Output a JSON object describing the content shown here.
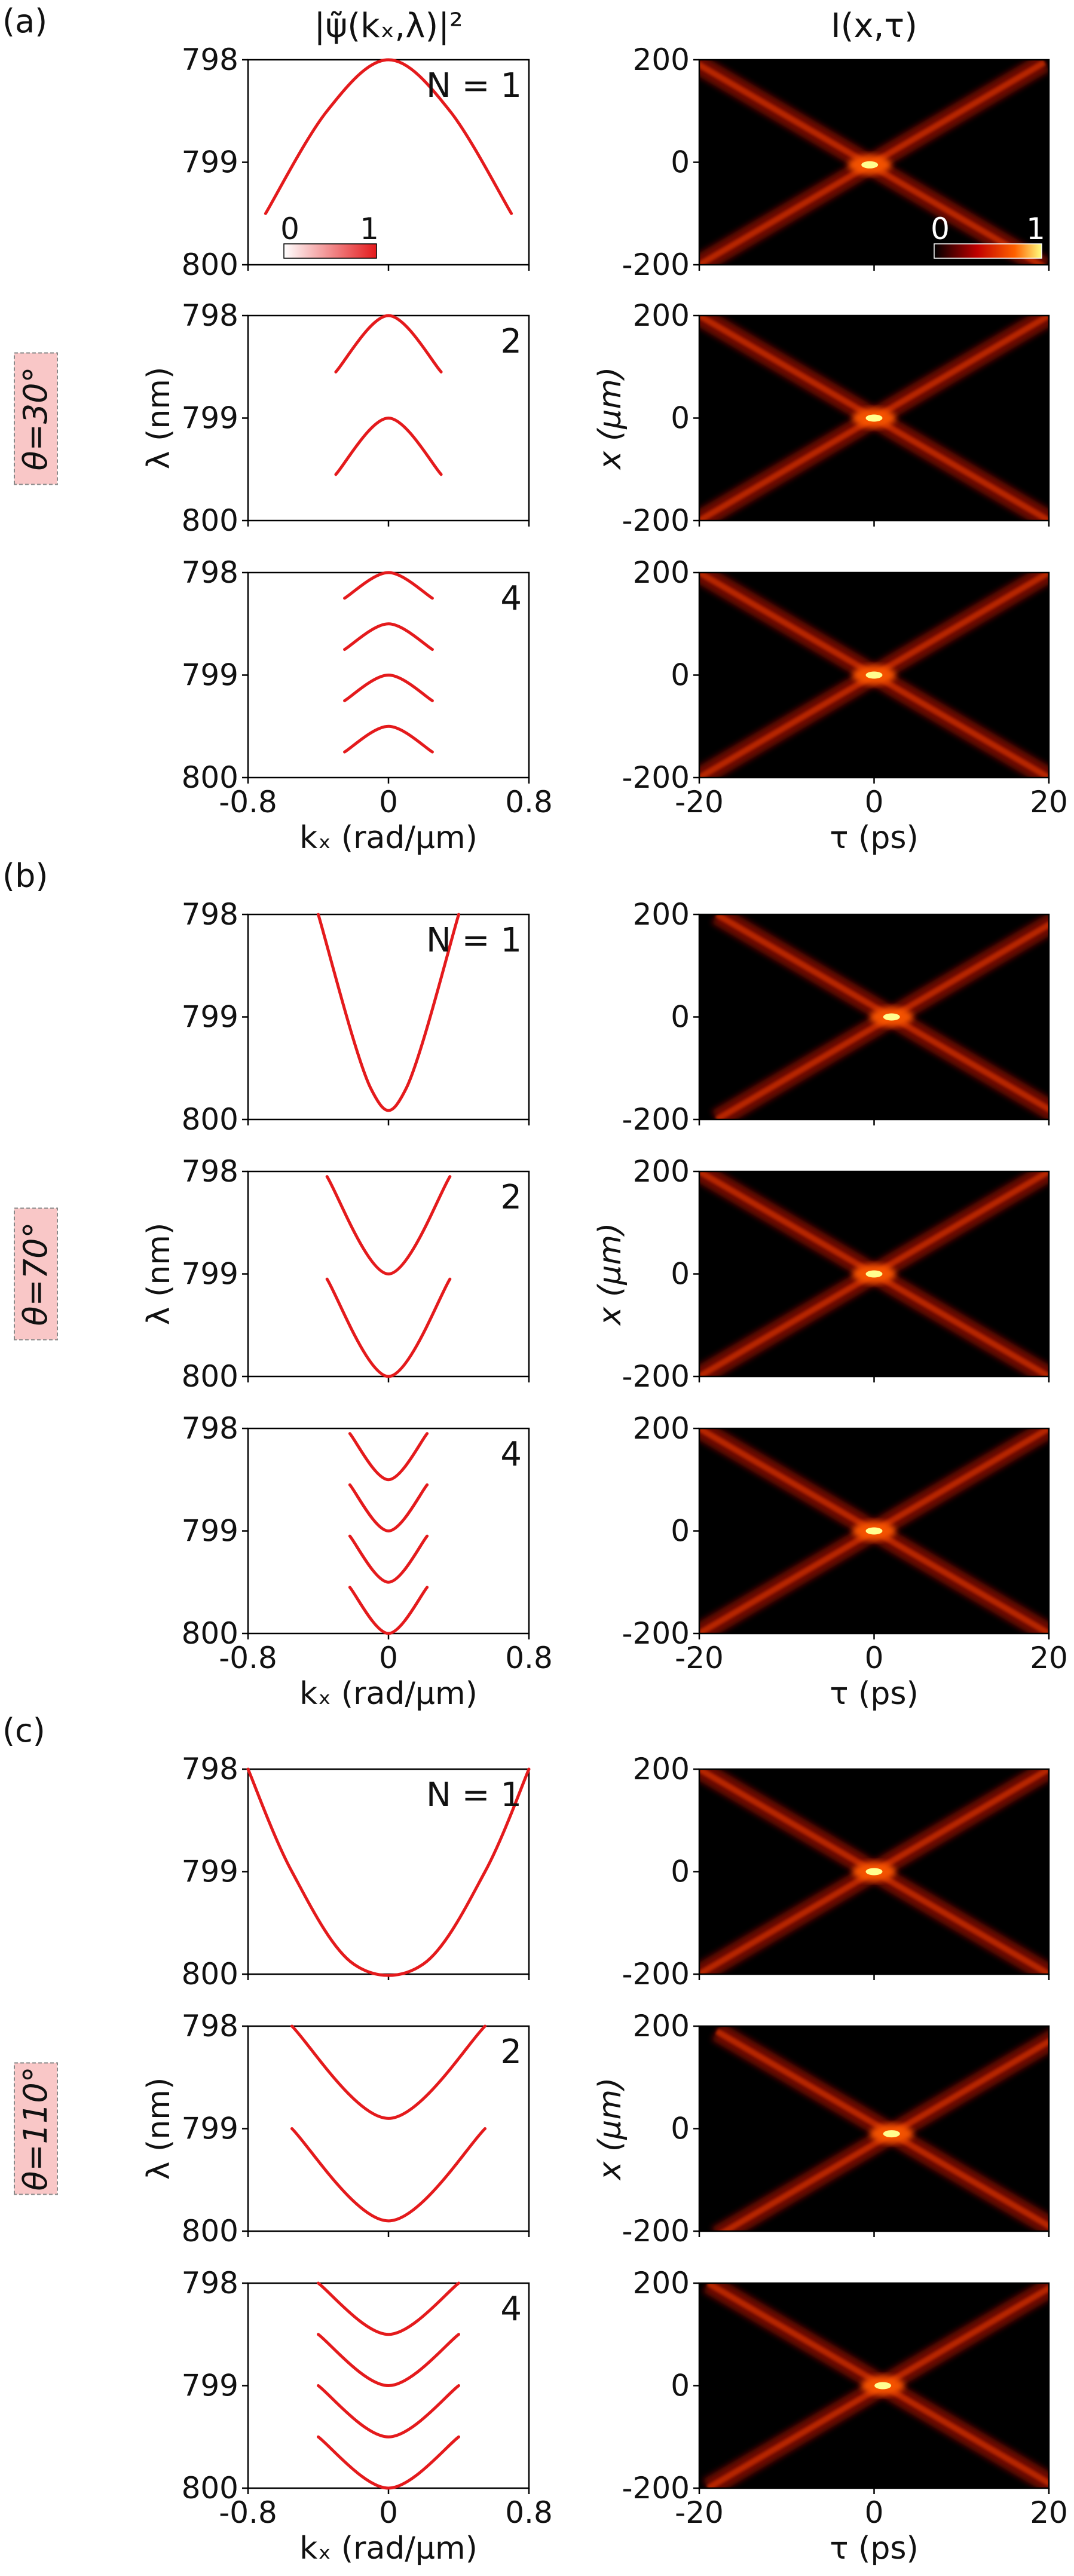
{
  "figure": {
    "left_column_title": "|ψ̃(kₓ,λ)|²",
    "right_column_title": "I(x,τ)",
    "colorbar_left": {
      "min": "0",
      "max": "1",
      "colors": [
        "#ffffff",
        "#e41a1c"
      ]
    },
    "colorbar_right": {
      "min": "0",
      "max": "1",
      "colors": [
        "#000000",
        "#c00000",
        "#ff6000",
        "#ffff80"
      ]
    },
    "spectrum_axes": {
      "xlabel": "kₓ (rad/μm)",
      "ylabel": "λ (nm)",
      "xticks": [
        "-0.8",
        "0",
        "0.8"
      ],
      "yticks": [
        "798",
        "799",
        "800"
      ]
    },
    "intensity_axes": {
      "xlabel": "τ (ps)",
      "ylabel": "x (μm)",
      "xticks": [
        "-20",
        "0",
        "20"
      ],
      "yticks": [
        "200",
        "0",
        "-200"
      ]
    },
    "groups": [
      {
        "label": "(a)",
        "theta": "θ=30°",
        "rows": [
          {
            "n_label": "N = 1"
          },
          {
            "n_label": "2"
          },
          {
            "n_label": "4"
          }
        ]
      },
      {
        "label": "(b)",
        "theta": "θ=70°",
        "rows": [
          {
            "n_label": "N = 1"
          },
          {
            "n_label": "2"
          },
          {
            "n_label": "4"
          }
        ]
      },
      {
        "label": "(c)",
        "theta": "θ=110°",
        "rows": [
          {
            "n_label": "N = 1"
          },
          {
            "n_label": "2"
          },
          {
            "n_label": "4"
          }
        ]
      }
    ]
  },
  "chart_data": [
    {
      "type": "line",
      "panel": "(a) N=1 spectrum",
      "title": "|ψ̃(kₓ,λ)|²",
      "xlabel": "kₓ (rad/μm)",
      "ylabel": "λ (nm)",
      "xlim": [
        -0.8,
        0.8
      ],
      "ylim": [
        800,
        798
      ],
      "series": [
        {
          "name": "band",
          "color": "#e41a1c",
          "x": [
            -0.7,
            -0.35,
            0,
            0.35,
            0.7
          ],
          "y": [
            799.5,
            798.5,
            798.0,
            798.5,
            799.5
          ]
        }
      ]
    },
    {
      "type": "line",
      "panel": "(a) N=2 spectrum",
      "title": "",
      "xlabel": "kₓ (rad/μm)",
      "ylabel": "λ (nm)",
      "xlim": [
        -0.8,
        0.8
      ],
      "ylim": [
        800,
        798
      ],
      "series": [
        {
          "name": "band-1",
          "color": "#e41a1c",
          "x": [
            -0.3,
            0,
            0.3
          ],
          "y": [
            798.55,
            798.0,
            798.55
          ]
        },
        {
          "name": "band-2",
          "color": "#e41a1c",
          "x": [
            -0.3,
            0,
            0.3
          ],
          "y": [
            799.55,
            799.0,
            799.55
          ]
        }
      ]
    },
    {
      "type": "line",
      "panel": "(a) N=4 spectrum",
      "title": "",
      "xlabel": "kₓ (rad/μm)",
      "ylabel": "λ (nm)",
      "xlim": [
        -0.8,
        0.8
      ],
      "ylim": [
        800,
        798
      ],
      "series": [
        {
          "name": "band-1",
          "color": "#e41a1c",
          "x": [
            -0.25,
            0,
            0.25
          ],
          "y": [
            798.25,
            798.0,
            798.25
          ]
        },
        {
          "name": "band-2",
          "color": "#e41a1c",
          "x": [
            -0.25,
            0,
            0.25
          ],
          "y": [
            798.75,
            798.5,
            798.75
          ]
        },
        {
          "name": "band-3",
          "color": "#e41a1c",
          "x": [
            -0.25,
            0,
            0.25
          ],
          "y": [
            799.25,
            799.0,
            799.25
          ]
        },
        {
          "name": "band-4",
          "color": "#e41a1c",
          "x": [
            -0.25,
            0,
            0.25
          ],
          "y": [
            799.75,
            799.5,
            799.75
          ]
        }
      ]
    },
    {
      "type": "line",
      "panel": "(b) N=1 spectrum",
      "title": "",
      "xlabel": "kₓ (rad/μm)",
      "ylabel": "λ (nm)",
      "xlim": [
        -0.8,
        0.8
      ],
      "ylim": [
        800,
        798
      ],
      "series": [
        {
          "name": "band",
          "color": "#e41a1c",
          "x": [
            -0.4,
            -0.1,
            0.1,
            0.4
          ],
          "y": [
            798.0,
            799.7,
            799.7,
            798.0
          ]
        }
      ]
    },
    {
      "type": "line",
      "panel": "(b) N=2 spectrum",
      "title": "",
      "xlabel": "kₓ (rad/μm)",
      "ylabel": "λ (nm)",
      "xlim": [
        -0.8,
        0.8
      ],
      "ylim": [
        800,
        798
      ],
      "series": [
        {
          "name": "band-1",
          "color": "#e41a1c",
          "x": [
            -0.35,
            0,
            0.35
          ],
          "y": [
            798.05,
            799.0,
            798.05
          ]
        },
        {
          "name": "band-2",
          "color": "#e41a1c",
          "x": [
            -0.35,
            0,
            0.35
          ],
          "y": [
            799.05,
            800.0,
            799.05
          ]
        }
      ]
    },
    {
      "type": "line",
      "panel": "(b) N=4 spectrum",
      "title": "",
      "xlabel": "kₓ (rad/μm)",
      "ylabel": "λ (nm)",
      "xlim": [
        -0.8,
        0.8
      ],
      "ylim": [
        800,
        798
      ],
      "series": [
        {
          "name": "band-1",
          "color": "#e41a1c",
          "x": [
            -0.22,
            0,
            0.22
          ],
          "y": [
            798.05,
            798.5,
            798.05
          ]
        },
        {
          "name": "band-2",
          "color": "#e41a1c",
          "x": [
            -0.22,
            0,
            0.22
          ],
          "y": [
            798.55,
            799.0,
            798.55
          ]
        },
        {
          "name": "band-3",
          "color": "#e41a1c",
          "x": [
            -0.22,
            0,
            0.22
          ],
          "y": [
            799.05,
            799.5,
            799.05
          ]
        },
        {
          "name": "band-4",
          "color": "#e41a1c",
          "x": [
            -0.22,
            0,
            0.22
          ],
          "y": [
            799.55,
            800.0,
            799.55
          ]
        }
      ]
    },
    {
      "type": "line",
      "panel": "(c) N=1 spectrum",
      "title": "",
      "xlabel": "kₓ (rad/μm)",
      "ylabel": "λ (nm)",
      "xlim": [
        -0.8,
        0.8
      ],
      "ylim": [
        800,
        798
      ],
      "series": [
        {
          "name": "band",
          "color": "#e41a1c",
          "x": [
            -0.8,
            -0.55,
            -0.2,
            0.2,
            0.55,
            0.8
          ],
          "y": [
            798.0,
            799.0,
            799.9,
            799.9,
            799.0,
            798.0
          ]
        }
      ]
    },
    {
      "type": "line",
      "panel": "(c) N=2 spectrum",
      "title": "",
      "xlabel": "kₓ (rad/μm)",
      "ylabel": "λ (nm)",
      "xlim": [
        -0.8,
        0.8
      ],
      "ylim": [
        800,
        798
      ],
      "series": [
        {
          "name": "band-1",
          "color": "#e41a1c",
          "x": [
            -0.55,
            0,
            0.55
          ],
          "y": [
            798.0,
            798.9,
            798.0
          ]
        },
        {
          "name": "band-2",
          "color": "#e41a1c",
          "x": [
            -0.55,
            0,
            0.55
          ],
          "y": [
            799.0,
            799.9,
            799.0
          ]
        }
      ]
    },
    {
      "type": "line",
      "panel": "(c) N=4 spectrum",
      "title": "",
      "xlabel": "kₓ (rad/μm)",
      "ylabel": "λ (nm)",
      "xlim": [
        -0.8,
        0.8
      ],
      "ylim": [
        800,
        798
      ],
      "series": [
        {
          "name": "band-1",
          "color": "#e41a1c",
          "x": [
            -0.4,
            0,
            0.4
          ],
          "y": [
            798.0,
            798.5,
            798.0
          ]
        },
        {
          "name": "band-2",
          "color": "#e41a1c",
          "x": [
            -0.4,
            0,
            0.4
          ],
          "y": [
            798.5,
            799.0,
            798.5
          ]
        },
        {
          "name": "band-3",
          "color": "#e41a1c",
          "x": [
            -0.4,
            0,
            0.4
          ],
          "y": [
            799.0,
            799.5,
            799.0
          ]
        },
        {
          "name": "band-4",
          "color": "#e41a1c",
          "x": [
            -0.4,
            0,
            0.4
          ],
          "y": [
            799.5,
            800.0,
            799.5
          ]
        }
      ]
    },
    {
      "type": "heatmap",
      "panel": "(a) N=1 intensity",
      "title": "I(x,τ)",
      "xlabel": "τ (ps)",
      "ylabel": "x (μm)",
      "xlim": [
        -20,
        20
      ],
      "ylim": [
        -200,
        200
      ],
      "peak": {
        "tau": -0.5,
        "x": -5
      },
      "arm_slope": 10
    },
    {
      "type": "heatmap",
      "panel": "(a) N=2 intensity",
      "xlabel": "τ (ps)",
      "ylabel": "x (μm)",
      "xlim": [
        -20,
        20
      ],
      "ylim": [
        -200,
        200
      ],
      "peak": {
        "tau": 0,
        "x": 0
      },
      "arm_slope": 10
    },
    {
      "type": "heatmap",
      "panel": "(a) N=4 intensity",
      "xlabel": "τ (ps)",
      "ylabel": "x (μm)",
      "xlim": [
        -20,
        20
      ],
      "ylim": [
        -200,
        200
      ],
      "peak": {
        "tau": 0,
        "x": 0
      },
      "arm_slope": 10
    },
    {
      "type": "heatmap",
      "panel": "(b) N=1 intensity",
      "xlabel": "τ (ps)",
      "ylabel": "x (μm)",
      "xlim": [
        -20,
        20
      ],
      "ylim": [
        -200,
        200
      ],
      "peak": {
        "tau": 2,
        "x": 0
      },
      "arm_slope": 10
    },
    {
      "type": "heatmap",
      "panel": "(b) N=2 intensity",
      "xlabel": "τ (ps)",
      "ylabel": "x (μm)",
      "xlim": [
        -20,
        20
      ],
      "ylim": [
        -200,
        200
      ],
      "peak": {
        "tau": 0,
        "x": 0
      },
      "arm_slope": 10
    },
    {
      "type": "heatmap",
      "panel": "(b) N=4 intensity",
      "xlabel": "τ (ps)",
      "ylabel": "x (μm)",
      "xlim": [
        -20,
        20
      ],
      "ylim": [
        -200,
        200
      ],
      "peak": {
        "tau": 0,
        "x": 0
      },
      "arm_slope": 10
    },
    {
      "type": "heatmap",
      "panel": "(c) N=1 intensity",
      "xlabel": "τ (ps)",
      "ylabel": "x (μm)",
      "xlim": [
        -20,
        20
      ],
      "ylim": [
        -200,
        200
      ],
      "peak": {
        "tau": 0,
        "x": 0
      },
      "arm_slope": 10
    },
    {
      "type": "heatmap",
      "panel": "(c) N=2 intensity",
      "xlabel": "τ (ps)",
      "ylabel": "x (μm)",
      "xlim": [
        -20,
        20
      ],
      "ylim": [
        -200,
        200
      ],
      "peak": {
        "tau": 2,
        "x": -10
      },
      "arm_slope": 10
    },
    {
      "type": "heatmap",
      "panel": "(c) N=4 intensity",
      "xlabel": "τ (ps)",
      "ylabel": "x (μm)",
      "xlim": [
        -20,
        20
      ],
      "ylim": [
        -200,
        200
      ],
      "peak": {
        "tau": 1,
        "x": 0
      },
      "arm_slope": 10
    }
  ]
}
